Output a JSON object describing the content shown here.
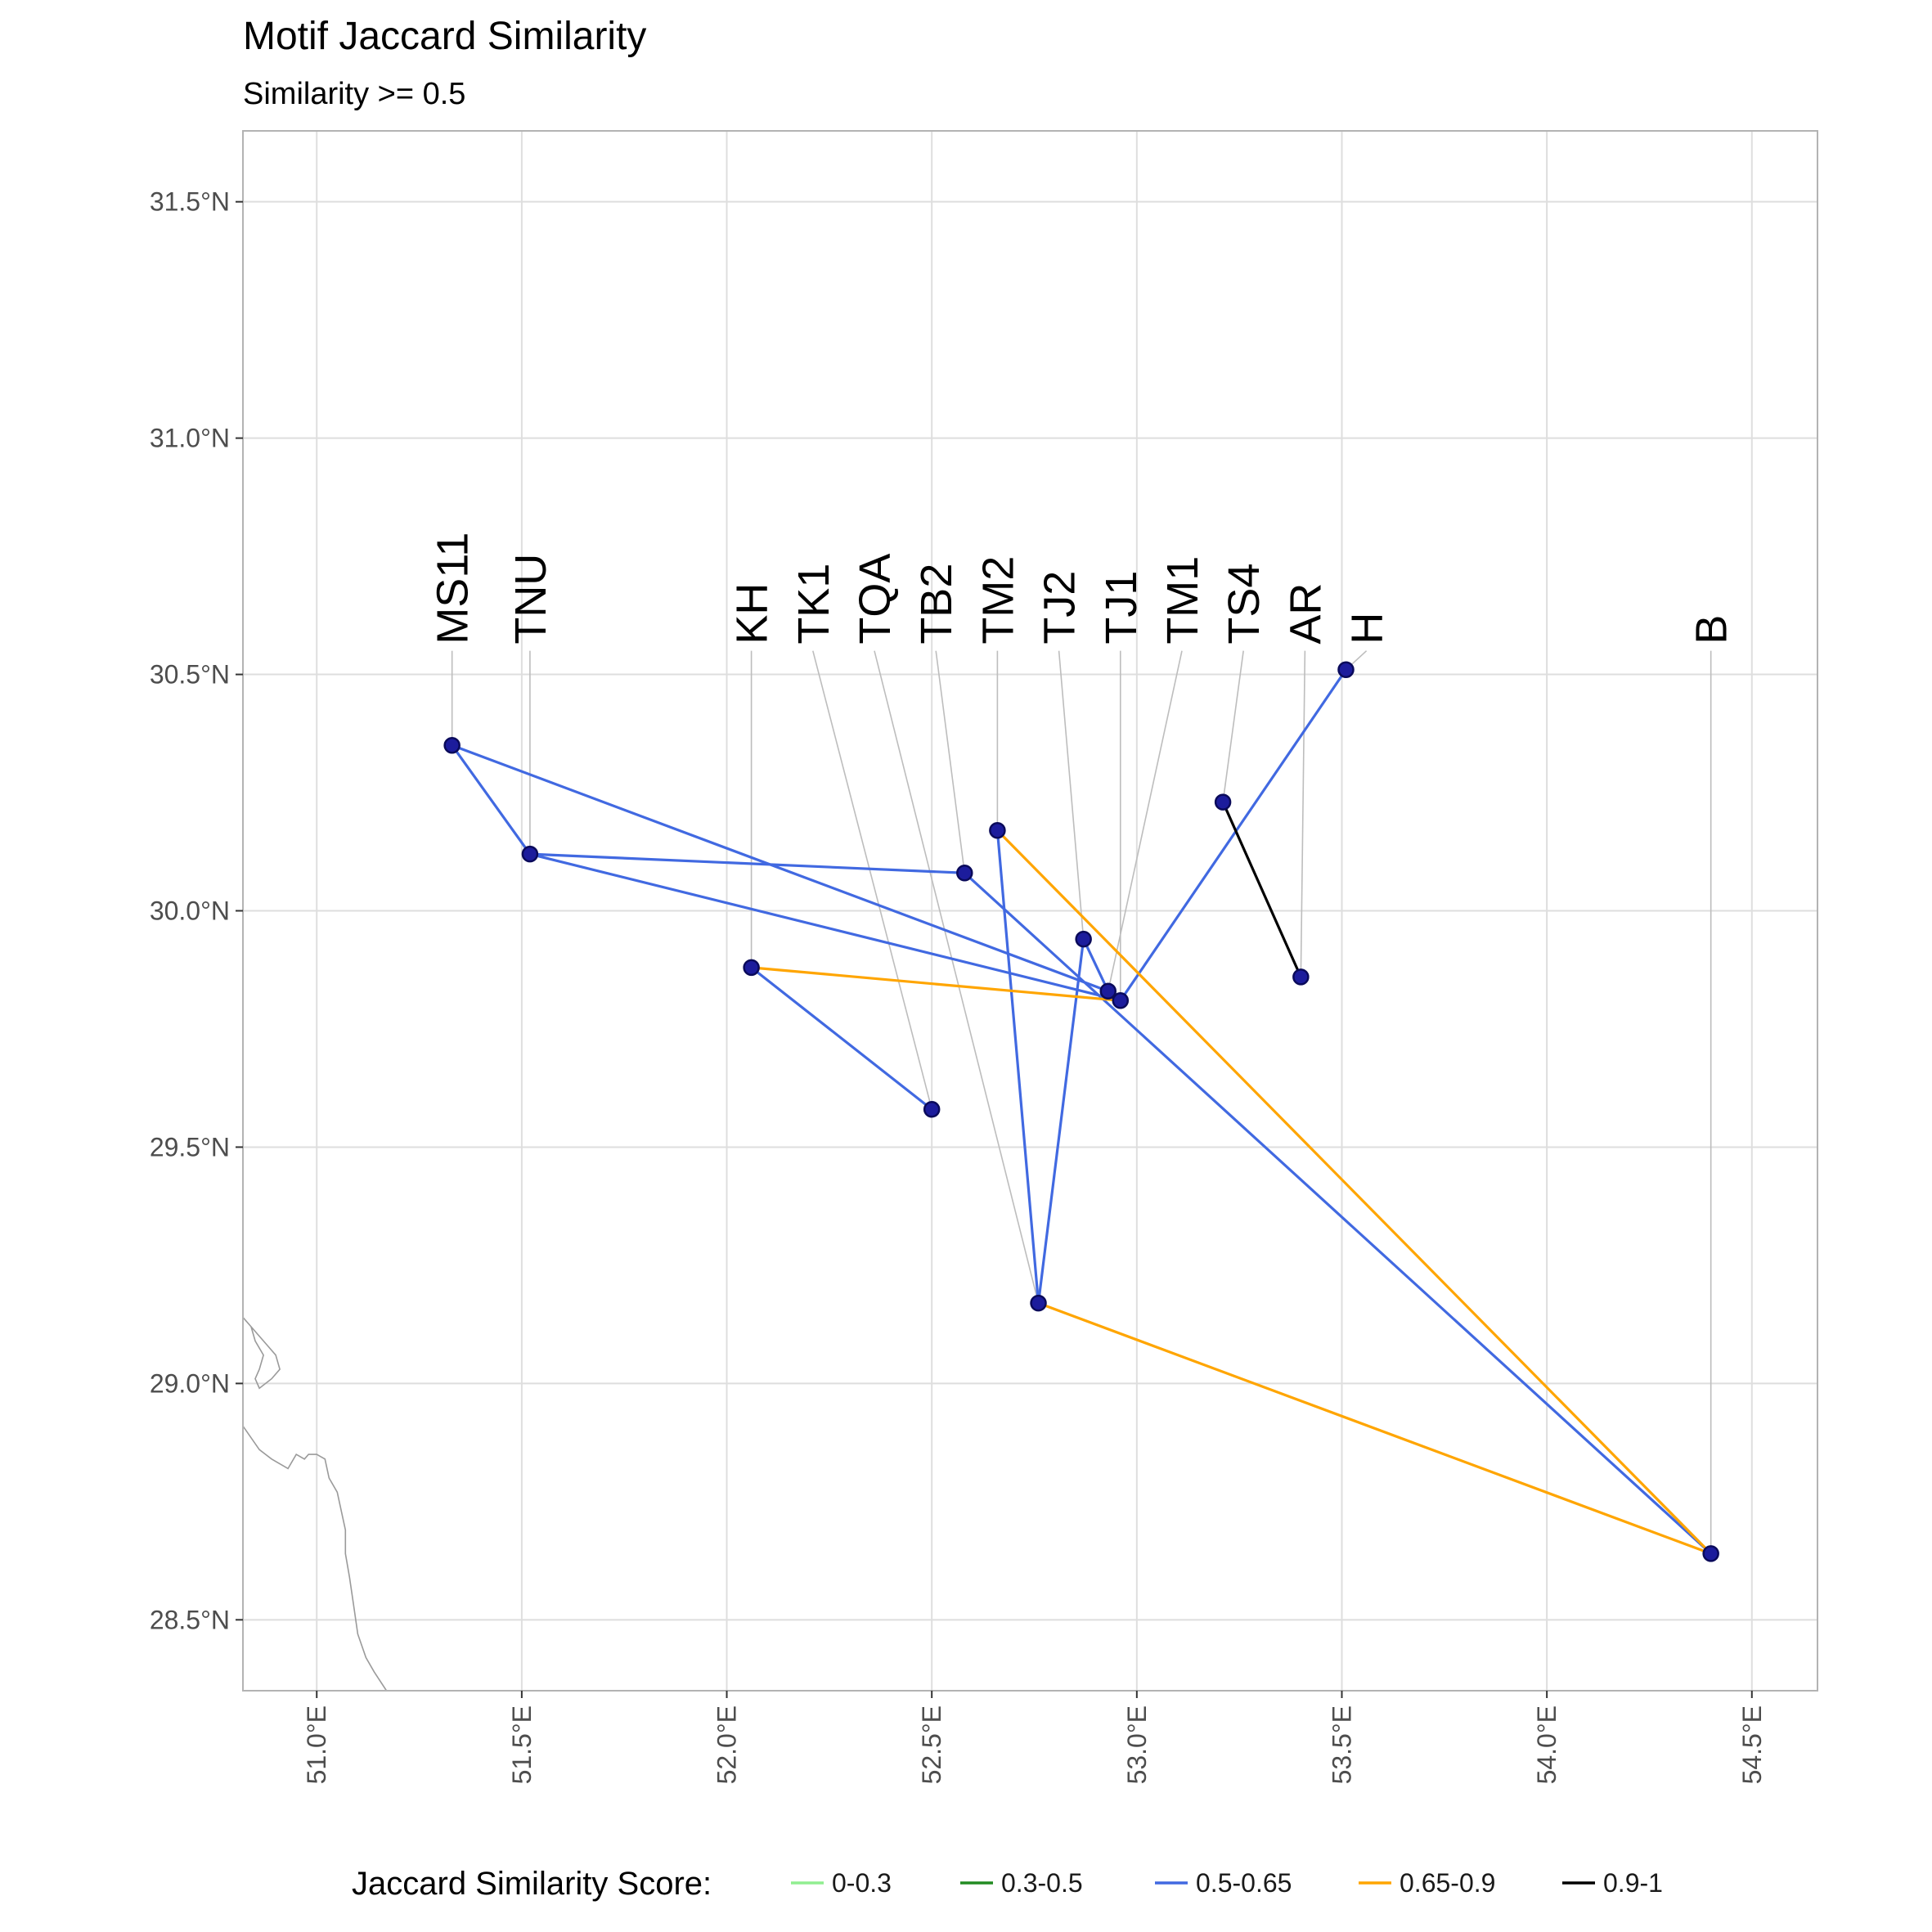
{
  "title": "Motif Jaccard Similarity",
  "subtitle": "Similarity >= 0.5",
  "chart_data": {
    "type": "map",
    "xlim": [
      50.82,
      54.66
    ],
    "ylim": [
      28.35,
      31.65
    ],
    "x_ticks": [
      {
        "value": 51.0,
        "label": "51.0°E"
      },
      {
        "value": 51.5,
        "label": "51.5°E"
      },
      {
        "value": 52.0,
        "label": "52.0°E"
      },
      {
        "value": 52.5,
        "label": "52.5°E"
      },
      {
        "value": 53.0,
        "label": "53.0°E"
      },
      {
        "value": 53.5,
        "label": "53.5°E"
      },
      {
        "value": 54.0,
        "label": "54.0°E"
      },
      {
        "value": 54.5,
        "label": "54.5°E"
      }
    ],
    "y_ticks": [
      {
        "value": 28.5,
        "label": "28.5°N"
      },
      {
        "value": 29.0,
        "label": "29.0°N"
      },
      {
        "value": 29.5,
        "label": "29.5°N"
      },
      {
        "value": 30.0,
        "label": "30.0°N"
      },
      {
        "value": 30.5,
        "label": "30.5°N"
      },
      {
        "value": 31.0,
        "label": "31.0°N"
      },
      {
        "value": 31.5,
        "label": "31.5°N"
      }
    ],
    "label_baseline_lat": 30.55,
    "sites": [
      {
        "name": "MS11",
        "lon": 51.33,
        "lat": 30.35,
        "label_lon": 51.33
      },
      {
        "name": "TNU",
        "lon": 51.52,
        "lat": 30.12,
        "label_lon": 51.52
      },
      {
        "name": "KH",
        "lon": 52.06,
        "lat": 29.88,
        "label_lon": 52.06
      },
      {
        "name": "TK1",
        "lon": 52.5,
        "lat": 29.58,
        "label_lon": 52.21
      },
      {
        "name": "TQA",
        "lon": 52.76,
        "lat": 29.17,
        "label_lon": 52.36
      },
      {
        "name": "TB2",
        "lon": 52.58,
        "lat": 30.08,
        "label_lon": 52.51
      },
      {
        "name": "TM2",
        "lon": 52.66,
        "lat": 30.17,
        "label_lon": 52.66
      },
      {
        "name": "TJ2",
        "lon": 52.87,
        "lat": 29.94,
        "label_lon": 52.81
      },
      {
        "name": "TJ1",
        "lon": 52.96,
        "lat": 29.81,
        "label_lon": 52.96
      },
      {
        "name": "TM1",
        "lon": 52.93,
        "lat": 29.83,
        "label_lon": 53.11
      },
      {
        "name": "TS4",
        "lon": 53.21,
        "lat": 30.23,
        "label_lon": 53.26
      },
      {
        "name": "AR",
        "lon": 53.4,
        "lat": 29.86,
        "label_lon": 53.41
      },
      {
        "name": "H",
        "lon": 53.51,
        "lat": 30.51,
        "label_lon": 53.56
      },
      {
        "name": "B",
        "lon": 54.4,
        "lat": 28.64,
        "label_lon": 54.4
      }
    ],
    "edges": [
      {
        "from": "MS11",
        "to": "TNU",
        "category": "0.5-0.65"
      },
      {
        "from": "MS11",
        "to": "TM1",
        "category": "0.5-0.65"
      },
      {
        "from": "TNU",
        "to": "TB2",
        "category": "0.5-0.65"
      },
      {
        "from": "TNU",
        "to": "TJ1",
        "category": "0.5-0.65"
      },
      {
        "from": "TB2",
        "to": "B",
        "category": "0.5-0.65"
      },
      {
        "from": "KH",
        "to": "TK1",
        "category": "0.5-0.65"
      },
      {
        "from": "TM2",
        "to": "TQA",
        "category": "0.5-0.65"
      },
      {
        "from": "TQA",
        "to": "TJ2",
        "category": "0.5-0.65"
      },
      {
        "from": "TJ2",
        "to": "TM1",
        "category": "0.5-0.65"
      },
      {
        "from": "TJ1",
        "to": "H",
        "category": "0.5-0.65"
      },
      {
        "from": "KH",
        "to": "TJ1",
        "category": "0.65-0.9"
      },
      {
        "from": "TM2",
        "to": "B",
        "category": "0.65-0.9"
      },
      {
        "from": "TQA",
        "to": "B",
        "category": "0.65-0.9"
      },
      {
        "from": "TS4",
        "to": "AR",
        "category": "0.9-1"
      }
    ],
    "legend": {
      "title": "Jaccard Similarity Score:",
      "position": "bottom",
      "items": [
        {
          "label": "0-0.3",
          "color": "#90ee90"
        },
        {
          "label": "0.3-0.5",
          "color": "#228b22"
        },
        {
          "label": "0.5-0.65",
          "color": "#4169e1"
        },
        {
          "label": "0.65-0.9",
          "color": "#ffa500"
        },
        {
          "label": "0.9-1",
          "color": "#000000"
        }
      ]
    },
    "colors": {
      "point_fill": "#1c1c9c",
      "point_stroke": "#0a0a5a",
      "connector": "#bdbdbd",
      "coastline": "#9a9a9a",
      "grid": "#dedede",
      "panel_border": "#b3b3b3"
    },
    "coastline": [
      [
        [
          50.82,
          29.14
        ],
        [
          50.84,
          29.12
        ],
        [
          50.85,
          29.09
        ],
        [
          50.87,
          29.06
        ],
        [
          50.86,
          29.03
        ],
        [
          50.85,
          29.01
        ],
        [
          50.86,
          28.99
        ],
        [
          50.89,
          29.01
        ],
        [
          50.91,
          29.03
        ],
        [
          50.9,
          29.06
        ],
        [
          50.88,
          29.08
        ],
        [
          50.86,
          29.1
        ],
        [
          50.84,
          29.12
        ]
      ],
      [
        [
          50.82,
          28.91
        ],
        [
          50.86,
          28.86
        ],
        [
          50.89,
          28.84
        ],
        [
          50.93,
          28.82
        ],
        [
          50.95,
          28.85
        ],
        [
          50.97,
          28.84
        ],
        [
          50.98,
          28.85
        ],
        [
          51.0,
          28.85
        ],
        [
          51.02,
          28.84
        ],
        [
          51.03,
          28.8
        ],
        [
          51.05,
          28.77
        ],
        [
          51.06,
          28.73
        ],
        [
          51.07,
          28.69
        ],
        [
          51.07,
          28.64
        ],
        [
          51.08,
          28.59
        ],
        [
          51.09,
          28.53
        ],
        [
          51.1,
          28.47
        ],
        [
          51.12,
          28.42
        ],
        [
          51.14,
          28.39
        ],
        [
          51.17,
          28.35
        ]
      ]
    ]
  }
}
